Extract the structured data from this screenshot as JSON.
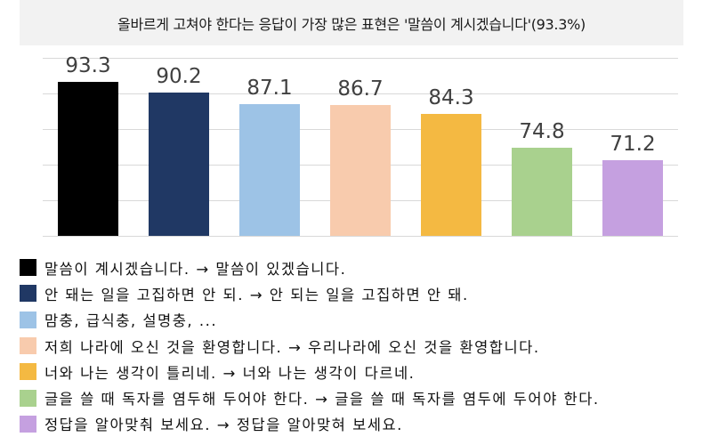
{
  "title": "올바르게 고쳐야 한다는 응답이 가장 많은 표현은 '말씀이 계시겠습니다'(93.3%)",
  "chart_data": {
    "type": "bar",
    "title": "올바르게 고쳐야 한다는 응답이 가장 많은 표현은 '말씀이 계시겠습니다'(93.3%)",
    "xlabel": "",
    "ylabel": "",
    "ylim": [
      50,
      100
    ],
    "grid": true,
    "gridlines": [
      50,
      60,
      70,
      80,
      90,
      100
    ],
    "legend_position": "bottom",
    "categories": [
      "말씀이 계시겠습니다. → 말씀이 있겠습니다.",
      "안 돼는 일을 고집하면 안 되. → 안 되는 일을 고집하면 안 돼.",
      "맘충, 급식충, 설명충, ...",
      "저희 나라에 오신 것을 환영합니다. → 우리나라에 오신 것을 환영합니다.",
      "너와 나는 생각이 틀리네. → 너와 나는 생각이 다르네.",
      "글을 쓸 때 독자를 염두해 두어야 한다. → 글을 쓸 때 독자를 염두에 두어야 한다.",
      "정답을 알아맞춰 보세요. → 정답을 알아맞혀 보세요."
    ],
    "values": [
      93.3,
      90.2,
      87.1,
      86.7,
      84.3,
      74.8,
      71.2
    ],
    "value_labels": [
      "93.3",
      "90.2",
      "87.1",
      "86.7",
      "84.3",
      "74.8",
      "71.2"
    ],
    "colors": [
      "#000000",
      "#203864",
      "#9dc3e6",
      "#f8cbad",
      "#f4b942",
      "#a9d18e",
      "#c5a0e0"
    ]
  },
  "legend": {
    "items": [
      {
        "label": "말씀이 계시겠습니다. → 말씀이 있겠습니다.",
        "color": "#000000"
      },
      {
        "label": "안 돼는 일을 고집하면 안 되. → 안 되는 일을 고집하면 안 돼.",
        "color": "#203864"
      },
      {
        "label": "맘충, 급식충, 설명충, ...",
        "color": "#9dc3e6"
      },
      {
        "label": "저희 나라에 오신 것을 환영합니다. → 우리나라에 오신 것을 환영합니다.",
        "color": "#f8cbad"
      },
      {
        "label": "너와 나는 생각이 틀리네. → 너와 나는 생각이 다르네.",
        "color": "#f4b942"
      },
      {
        "label": "글을 쓸 때 독자를 염두해 두어야 한다. → 글을 쓸 때 독자를 염두에 두어야 한다.",
        "color": "#a9d18e"
      },
      {
        "label": "정답을 알아맞춰 보세요. → 정답을 알아맞혀 보세요.",
        "color": "#c5a0e0"
      }
    ]
  }
}
